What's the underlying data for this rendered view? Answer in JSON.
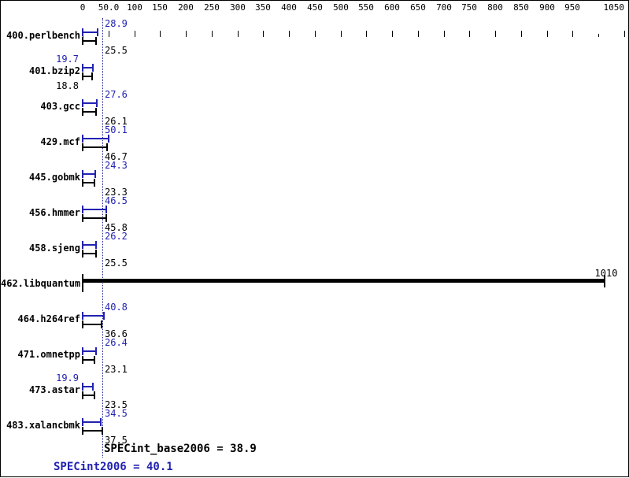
{
  "chart_data": {
    "type": "bar",
    "orientation": "horizontal",
    "title": "",
    "xlabel": "",
    "ylabel": "",
    "xlim": [
      0,
      1060
    ],
    "grid": false,
    "legend": "none",
    "x_ticks": [
      {
        "value": 0,
        "label": "0"
      },
      {
        "value": 50,
        "label": "50.0"
      },
      {
        "value": 100,
        "label": "100"
      },
      {
        "value": 150,
        "label": "150"
      },
      {
        "value": 200,
        "label": "200"
      },
      {
        "value": 250,
        "label": "250"
      },
      {
        "value": 300,
        "label": "300"
      },
      {
        "value": 350,
        "label": "350"
      },
      {
        "value": 400,
        "label": "400"
      },
      {
        "value": 450,
        "label": "450"
      },
      {
        "value": 500,
        "label": "500"
      },
      {
        "value": 550,
        "label": "550"
      },
      {
        "value": 600,
        "label": "600"
      },
      {
        "value": 650,
        "label": "650"
      },
      {
        "value": 700,
        "label": "700"
      },
      {
        "value": 750,
        "label": "750"
      },
      {
        "value": 800,
        "label": "800"
      },
      {
        "value": 850,
        "label": "850"
      },
      {
        "value": 900,
        "label": "900"
      },
      {
        "value": 950,
        "label": "950"
      },
      {
        "value": 1000,
        "label": "",
        "minor": true
      },
      {
        "value": 1050,
        "label": "1050"
      }
    ],
    "ref_line": {
      "value": 38.9,
      "style": "dotted",
      "color": "#1a1a8c"
    },
    "series": [
      {
        "name": "peak",
        "color": "#2222b2"
      },
      {
        "name": "base",
        "color": "#000000"
      }
    ],
    "benchmarks": [
      {
        "name": "400.perlbench",
        "peak": 28.9,
        "peak_text": "28.9",
        "peak_label_pos": "line",
        "base": 25.5,
        "base_text": "25.5",
        "base_label_pos": "line"
      },
      {
        "name": "401.bzip2",
        "peak": 19.7,
        "peak_text": "19.7",
        "peak_label_pos": "left",
        "base": 18.8,
        "base_text": "18.8",
        "base_label_pos": "left"
      },
      {
        "name": "403.gcc",
        "peak": 27.6,
        "peak_text": "27.6",
        "peak_label_pos": "line",
        "base": 26.1,
        "base_text": "26.1",
        "base_label_pos": "line"
      },
      {
        "name": "429.mcf",
        "peak": 50.1,
        "peak_text": "50.1",
        "peak_label_pos": "line",
        "base": 46.7,
        "base_text": "46.7",
        "base_label_pos": "line"
      },
      {
        "name": "445.gobmk",
        "peak": 24.3,
        "peak_text": "24.3",
        "peak_label_pos": "line",
        "base": 23.3,
        "base_text": "23.3",
        "base_label_pos": "line"
      },
      {
        "name": "456.hmmer",
        "peak": 46.5,
        "peak_text": "46.5",
        "peak_label_pos": "line",
        "base": 45.8,
        "base_text": "45.8",
        "base_label_pos": "line"
      },
      {
        "name": "458.sjeng",
        "peak": 26.2,
        "peak_text": "26.2",
        "peak_label_pos": "line",
        "base": 25.5,
        "base_text": "25.5",
        "base_label_pos": "line"
      },
      {
        "name": "462.libquantum",
        "merged": true,
        "peak": 1010,
        "peak_text": "1010",
        "base": 1010
      },
      {
        "name": "464.h264ref",
        "peak": 40.8,
        "peak_text": "40.8",
        "peak_label_pos": "line",
        "base": 36.6,
        "base_text": "36.6",
        "base_label_pos": "line"
      },
      {
        "name": "471.omnetpp",
        "peak": 26.4,
        "peak_text": "26.4",
        "peak_label_pos": "line",
        "base": 23.1,
        "base_text": "23.1",
        "base_label_pos": "line"
      },
      {
        "name": "473.astar",
        "peak": 19.9,
        "peak_text": "19.9",
        "peak_label_pos": "left",
        "base": 23.5,
        "base_text": "23.5",
        "base_label_pos": "line"
      },
      {
        "name": "483.xalancbmk",
        "peak": 34.5,
        "peak_text": "34.5",
        "peak_label_pos": "line",
        "base": 37.5,
        "base_text": "37.5",
        "base_label_pos": "line"
      }
    ],
    "summary": {
      "base_label": "SPECint_base2006 = 38.9",
      "peak_label": "SPECint2006 = 40.1"
    }
  },
  "colors": {
    "peak_blue": "#2222b2",
    "base_black": "#000000",
    "background": "#ffffff",
    "border": "#000000"
  }
}
